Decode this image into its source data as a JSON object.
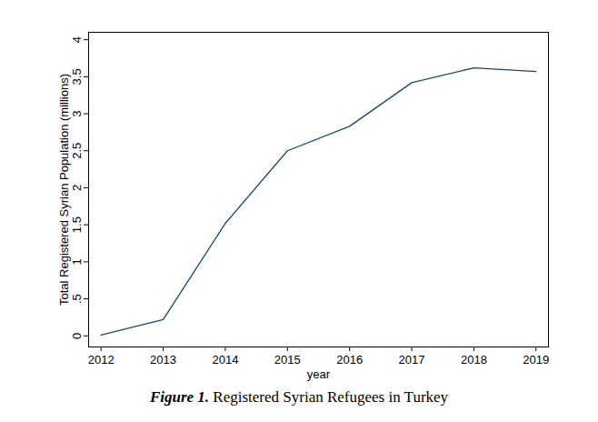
{
  "chart_data": {
    "type": "line",
    "title": "Figure 1. Registered Syrian Refugees in Turkey",
    "x_label": "year",
    "y_label": "Total Registered Syrian Population (millions)",
    "x": [
      2012,
      2013,
      2014,
      2015,
      2016,
      2017,
      2018,
      2019
    ],
    "values": [
      0.01,
      0.22,
      1.52,
      2.5,
      2.83,
      3.42,
      3.62,
      3.57
    ],
    "color": "#1a476f",
    "xlim": [
      2011.8,
      2019.2
    ],
    "xticks": [
      2012,
      2013,
      2014,
      2015,
      2016,
      2017,
      2018,
      2019
    ],
    "ylim": [
      -0.15,
      4.1
    ],
    "yticks": [
      0,
      {
        "value": 0.5,
        "label": ".5"
      },
      1,
      1.5,
      2,
      2.5,
      3,
      3.5,
      4
    ],
    "grid": false
  }
}
